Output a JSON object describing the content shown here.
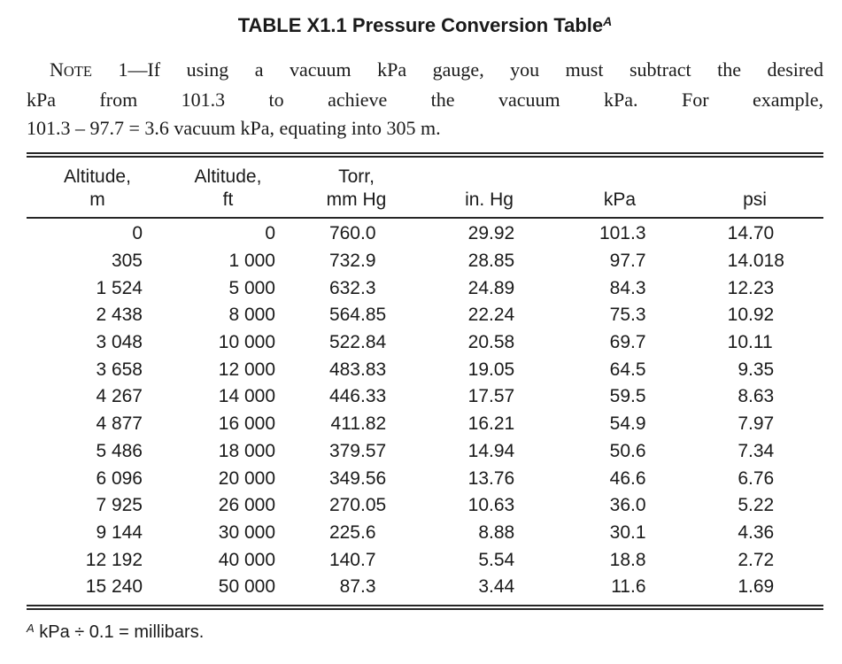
{
  "title": {
    "text": "TABLE X1.1 Pressure Conversion Table",
    "footnote_ref": "A"
  },
  "note": {
    "label_cap": "N",
    "label_small": "OTE",
    "line1_rest": " 1—If using a vacuum kPa gauge, you must subtract the desired",
    "line2": "kPa from 101.3 to achieve the vacuum kPa. For example,",
    "line3": "101.3 – 97.7 = 3.6 vacuum kPa, equating into 305 m."
  },
  "table": {
    "columns": [
      {
        "line1": "Altitude,",
        "line2": "m"
      },
      {
        "line1": "Altitude,",
        "line2": "ft"
      },
      {
        "line1": "Torr,",
        "line2": "mm Hg"
      },
      {
        "line1": "",
        "line2": "in. Hg"
      },
      {
        "line1": "",
        "line2": "kPa"
      },
      {
        "line1": "",
        "line2": "psi"
      }
    ],
    "rows": [
      [
        "0",
        "0",
        "760.0",
        "29.92",
        "101.3",
        "14.70"
      ],
      [
        "305",
        "1 000",
        "732.9",
        "28.85",
        "97.7",
        "14.018"
      ],
      [
        "1 524",
        "5 000",
        "632.3",
        "24.89",
        "84.3",
        "12.23"
      ],
      [
        "2 438",
        "8 000",
        "564.85",
        "22.24",
        "75.3",
        "10.92"
      ],
      [
        "3 048",
        "10 000",
        "522.84",
        "20.58",
        "69.7",
        "10.11"
      ],
      [
        "3 658",
        "12 000",
        "483.83",
        "19.05",
        "64.5",
        "9.35"
      ],
      [
        "4 267",
        "14 000",
        "446.33",
        "17.57",
        "59.5",
        "8.63"
      ],
      [
        "4 877",
        "16 000",
        "411.82",
        "16.21",
        "54.9",
        "7.97"
      ],
      [
        "5 486",
        "18 000",
        "379.57",
        "14.94",
        "50.6",
        "7.34"
      ],
      [
        "6 096",
        "20 000",
        "349.56",
        "13.76",
        "46.6",
        "6.76"
      ],
      [
        "7 925",
        "26 000",
        "270.05",
        "10.63",
        "36.0",
        "5.22"
      ],
      [
        "9 144",
        "30 000",
        "225.6",
        "8.88",
        "30.1",
        "4.36"
      ],
      [
        "12 192",
        "40 000",
        "140.7",
        "5.54",
        "18.8",
        "2.72"
      ],
      [
        "15 240",
        "50 000",
        "87.3",
        "3.44",
        "11.6",
        "1.69"
      ]
    ]
  },
  "footnote": {
    "ref": "A",
    "text": " kPa ÷ 0.1 = millibars."
  }
}
